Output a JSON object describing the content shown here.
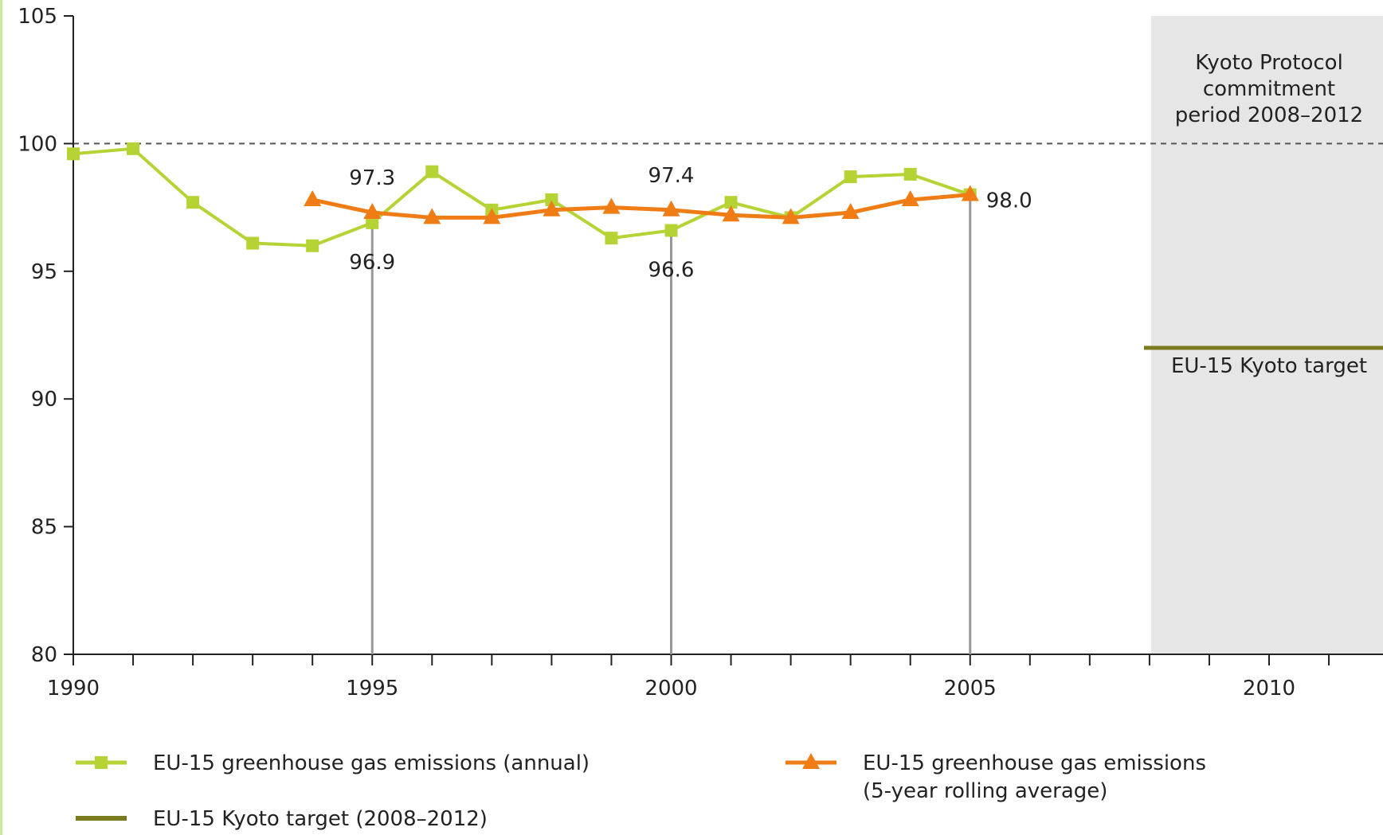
{
  "chart_data": {
    "type": "line",
    "title": "",
    "xlabel": "",
    "ylabel": "",
    "xlim": [
      1990,
      2012
    ],
    "ylim": [
      80,
      105
    ],
    "x_ticks_labeled": [
      1990,
      1995,
      2000,
      2005,
      2010
    ],
    "y_ticks": [
      80,
      85,
      90,
      95,
      100,
      105
    ],
    "grid": false,
    "reference_line": {
      "value": 100,
      "style": "dashed"
    },
    "shaded_period": {
      "start": 2008,
      "end": 2012,
      "label_lines": [
        "Kyoto Protocol",
        "commitment",
        "period 2008–2012"
      ]
    },
    "target": {
      "value": 92,
      "from": 2008,
      "to": 2012,
      "label": "EU-15 Kyoto target",
      "color": "#7a7a1e"
    },
    "series": [
      {
        "name": "EU-15 greenhouse gas emissions (annual)",
        "color": "#b5d334",
        "marker": "square",
        "x": [
          1990,
          1991,
          1992,
          1993,
          1994,
          1995,
          1996,
          1997,
          1998,
          1999,
          2000,
          2001,
          2002,
          2003,
          2004,
          2005
        ],
        "values": [
          99.6,
          99.8,
          97.7,
          96.1,
          96.0,
          96.9,
          98.9,
          97.4,
          97.8,
          96.3,
          96.6,
          97.7,
          97.1,
          98.7,
          98.8,
          98.0
        ]
      },
      {
        "name": "EU-15 greenhouse gas emissions (5-year rolling average)",
        "color": "#f07c16",
        "marker": "triangle",
        "x": [
          1994,
          1995,
          1996,
          1997,
          1998,
          1999,
          2000,
          2001,
          2002,
          2003,
          2004,
          2005
        ],
        "values": [
          97.8,
          97.3,
          97.1,
          97.1,
          97.4,
          97.5,
          97.4,
          97.2,
          97.1,
          97.3,
          97.8,
          98.0
        ]
      }
    ],
    "vertical_markers": [
      1995,
      2000,
      2005
    ],
    "annotations": [
      {
        "x": 1995,
        "text": "97.3",
        "position": "above"
      },
      {
        "x": 1995,
        "text": "96.9",
        "position": "below"
      },
      {
        "x": 2000,
        "text": "97.4",
        "position": "above"
      },
      {
        "x": 2000,
        "text": "96.6",
        "position": "below"
      },
      {
        "x": 2005,
        "text": "98.0",
        "position": "right"
      }
    ],
    "legend": {
      "placement": "bottom",
      "items": [
        {
          "label_lines": [
            "EU-15 greenhouse gas emissions (annual)"
          ],
          "color": "#b5d334",
          "marker": "square"
        },
        {
          "label_lines": [
            "EU-15 greenhouse gas emissions",
            "(5-year rolling average)"
          ],
          "color": "#f07c16",
          "marker": "triangle"
        },
        {
          "label_lines": [
            "EU-15 Kyoto target (2008–2012)"
          ],
          "color": "#7a7a1e",
          "marker": "none"
        }
      ]
    }
  }
}
